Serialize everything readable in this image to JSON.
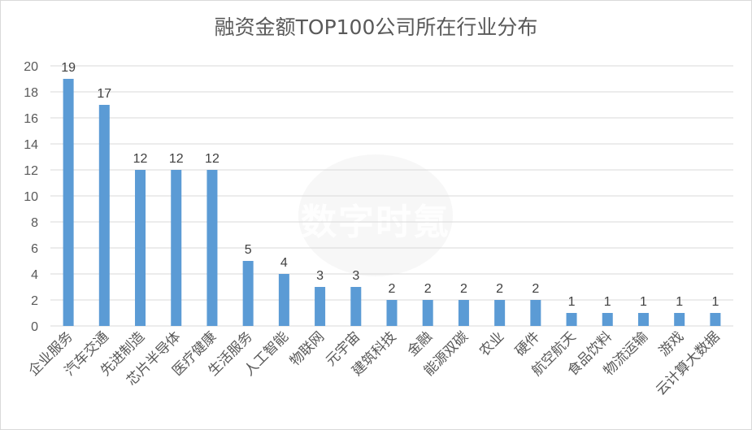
{
  "chart_data": {
    "type": "bar",
    "title": "融资金额TOP100公司所在行业分布",
    "categories": [
      "企业服务",
      "汽车交通",
      "先进制造",
      "芯片半导体",
      "医疗健康",
      "生活服务",
      "人工智能",
      "物联网",
      "元宇宙",
      "建筑科技",
      "金融",
      "能源双碳",
      "农业",
      "硬件",
      "航空航天",
      "食品饮料",
      "物流运输",
      "游戏",
      "云计算大数据"
    ],
    "values": [
      19,
      17,
      12,
      12,
      12,
      5,
      4,
      3,
      3,
      2,
      2,
      2,
      2,
      2,
      1,
      1,
      1,
      1,
      1
    ],
    "ylim": [
      0,
      20
    ],
    "yticks": [
      0,
      2,
      4,
      6,
      8,
      10,
      12,
      14,
      16,
      18,
      20
    ],
    "xlabel": "",
    "ylabel": "",
    "grid": true,
    "legend": "none",
    "bar_color": "#5b9bd5",
    "grid_color": "#d9d9d9",
    "text_color": "#595959"
  },
  "watermark": {
    "text": "数字时氪"
  }
}
